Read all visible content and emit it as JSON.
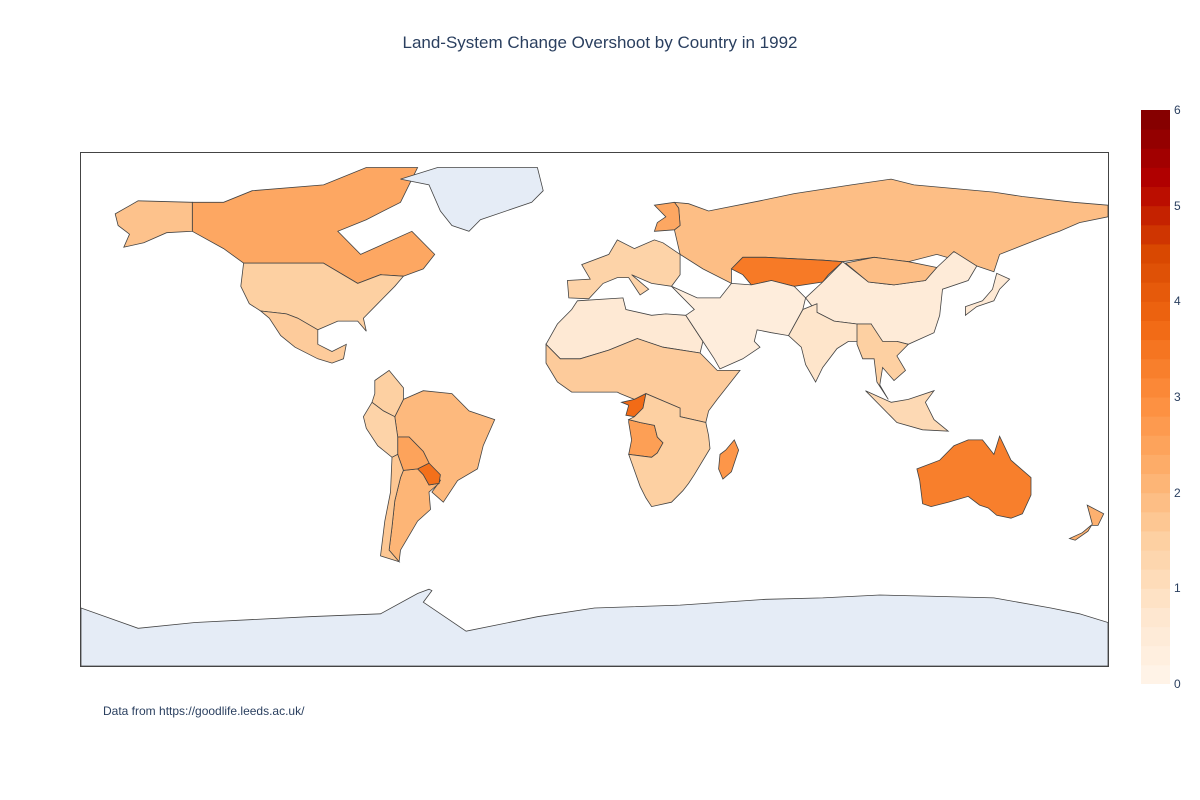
{
  "title": "Land-System Change Overshoot by Country in 1992",
  "source_note": "Data from https://goodlife.leeds.ac.uk/",
  "colorbar": {
    "min": 0,
    "max": 6,
    "ticks": [
      "0",
      "1",
      "2",
      "3",
      "4",
      "5",
      "6"
    ],
    "colors": [
      "#fff5eb",
      "#fee6ce",
      "#fdd0a2",
      "#fdae6b",
      "#fd8d3c",
      "#f16913",
      "#d94801",
      "#b30000",
      "#7f0000"
    ]
  },
  "no_data_color": "#e5ecf6",
  "chart_data": {
    "type": "choropleth",
    "title": "Land-System Change Overshoot by Country in 1992",
    "colorscale_range": [
      0,
      6
    ],
    "values": [
      {
        "region": "Canada",
        "value": 2.4
      },
      {
        "region": "Alaska (USA)",
        "value": 1.8
      },
      {
        "region": "United States",
        "value": 1.5
      },
      {
        "region": "Mexico",
        "value": 1.6
      },
      {
        "region": "Greenland",
        "value": null
      },
      {
        "region": "Brazil",
        "value": 2.0
      },
      {
        "region": "Argentina",
        "value": 2.1
      },
      {
        "region": "Paraguay",
        "value": 3.6
      },
      {
        "region": "Bolivia",
        "value": 2.5
      },
      {
        "region": "Colombia",
        "value": 1.5
      },
      {
        "region": "Peru",
        "value": 1.4
      },
      {
        "region": "Chile",
        "value": 1.7
      },
      {
        "region": "Russia",
        "value": 1.9
      },
      {
        "region": "Kazakhstan",
        "value": 3.4
      },
      {
        "region": "China",
        "value": 0.5
      },
      {
        "region": "Mongolia",
        "value": 1.9
      },
      {
        "region": "India",
        "value": 0.8
      },
      {
        "region": "Finland",
        "value": 2.4
      },
      {
        "region": "Western Europe",
        "value": 1.4
      },
      {
        "region": "Northern Africa",
        "value": 0.6
      },
      {
        "region": "West & Central Africa",
        "value": 1.6
      },
      {
        "region": "Congo",
        "value": 3.7
      },
      {
        "region": "Angola",
        "value": 2.6
      },
      {
        "region": "Southern Africa",
        "value": 1.5
      },
      {
        "region": "Madagascar",
        "value": 2.8
      },
      {
        "region": "Middle East",
        "value": 0.4
      },
      {
        "region": "Southeast Asia",
        "value": 1.5
      },
      {
        "region": "Indonesia",
        "value": 1.2
      },
      {
        "region": "Japan",
        "value": 0.6
      },
      {
        "region": "Australia",
        "value": 3.3
      },
      {
        "region": "New Zealand",
        "value": 2.2
      },
      {
        "region": "Antarctica",
        "value": null
      }
    ]
  }
}
